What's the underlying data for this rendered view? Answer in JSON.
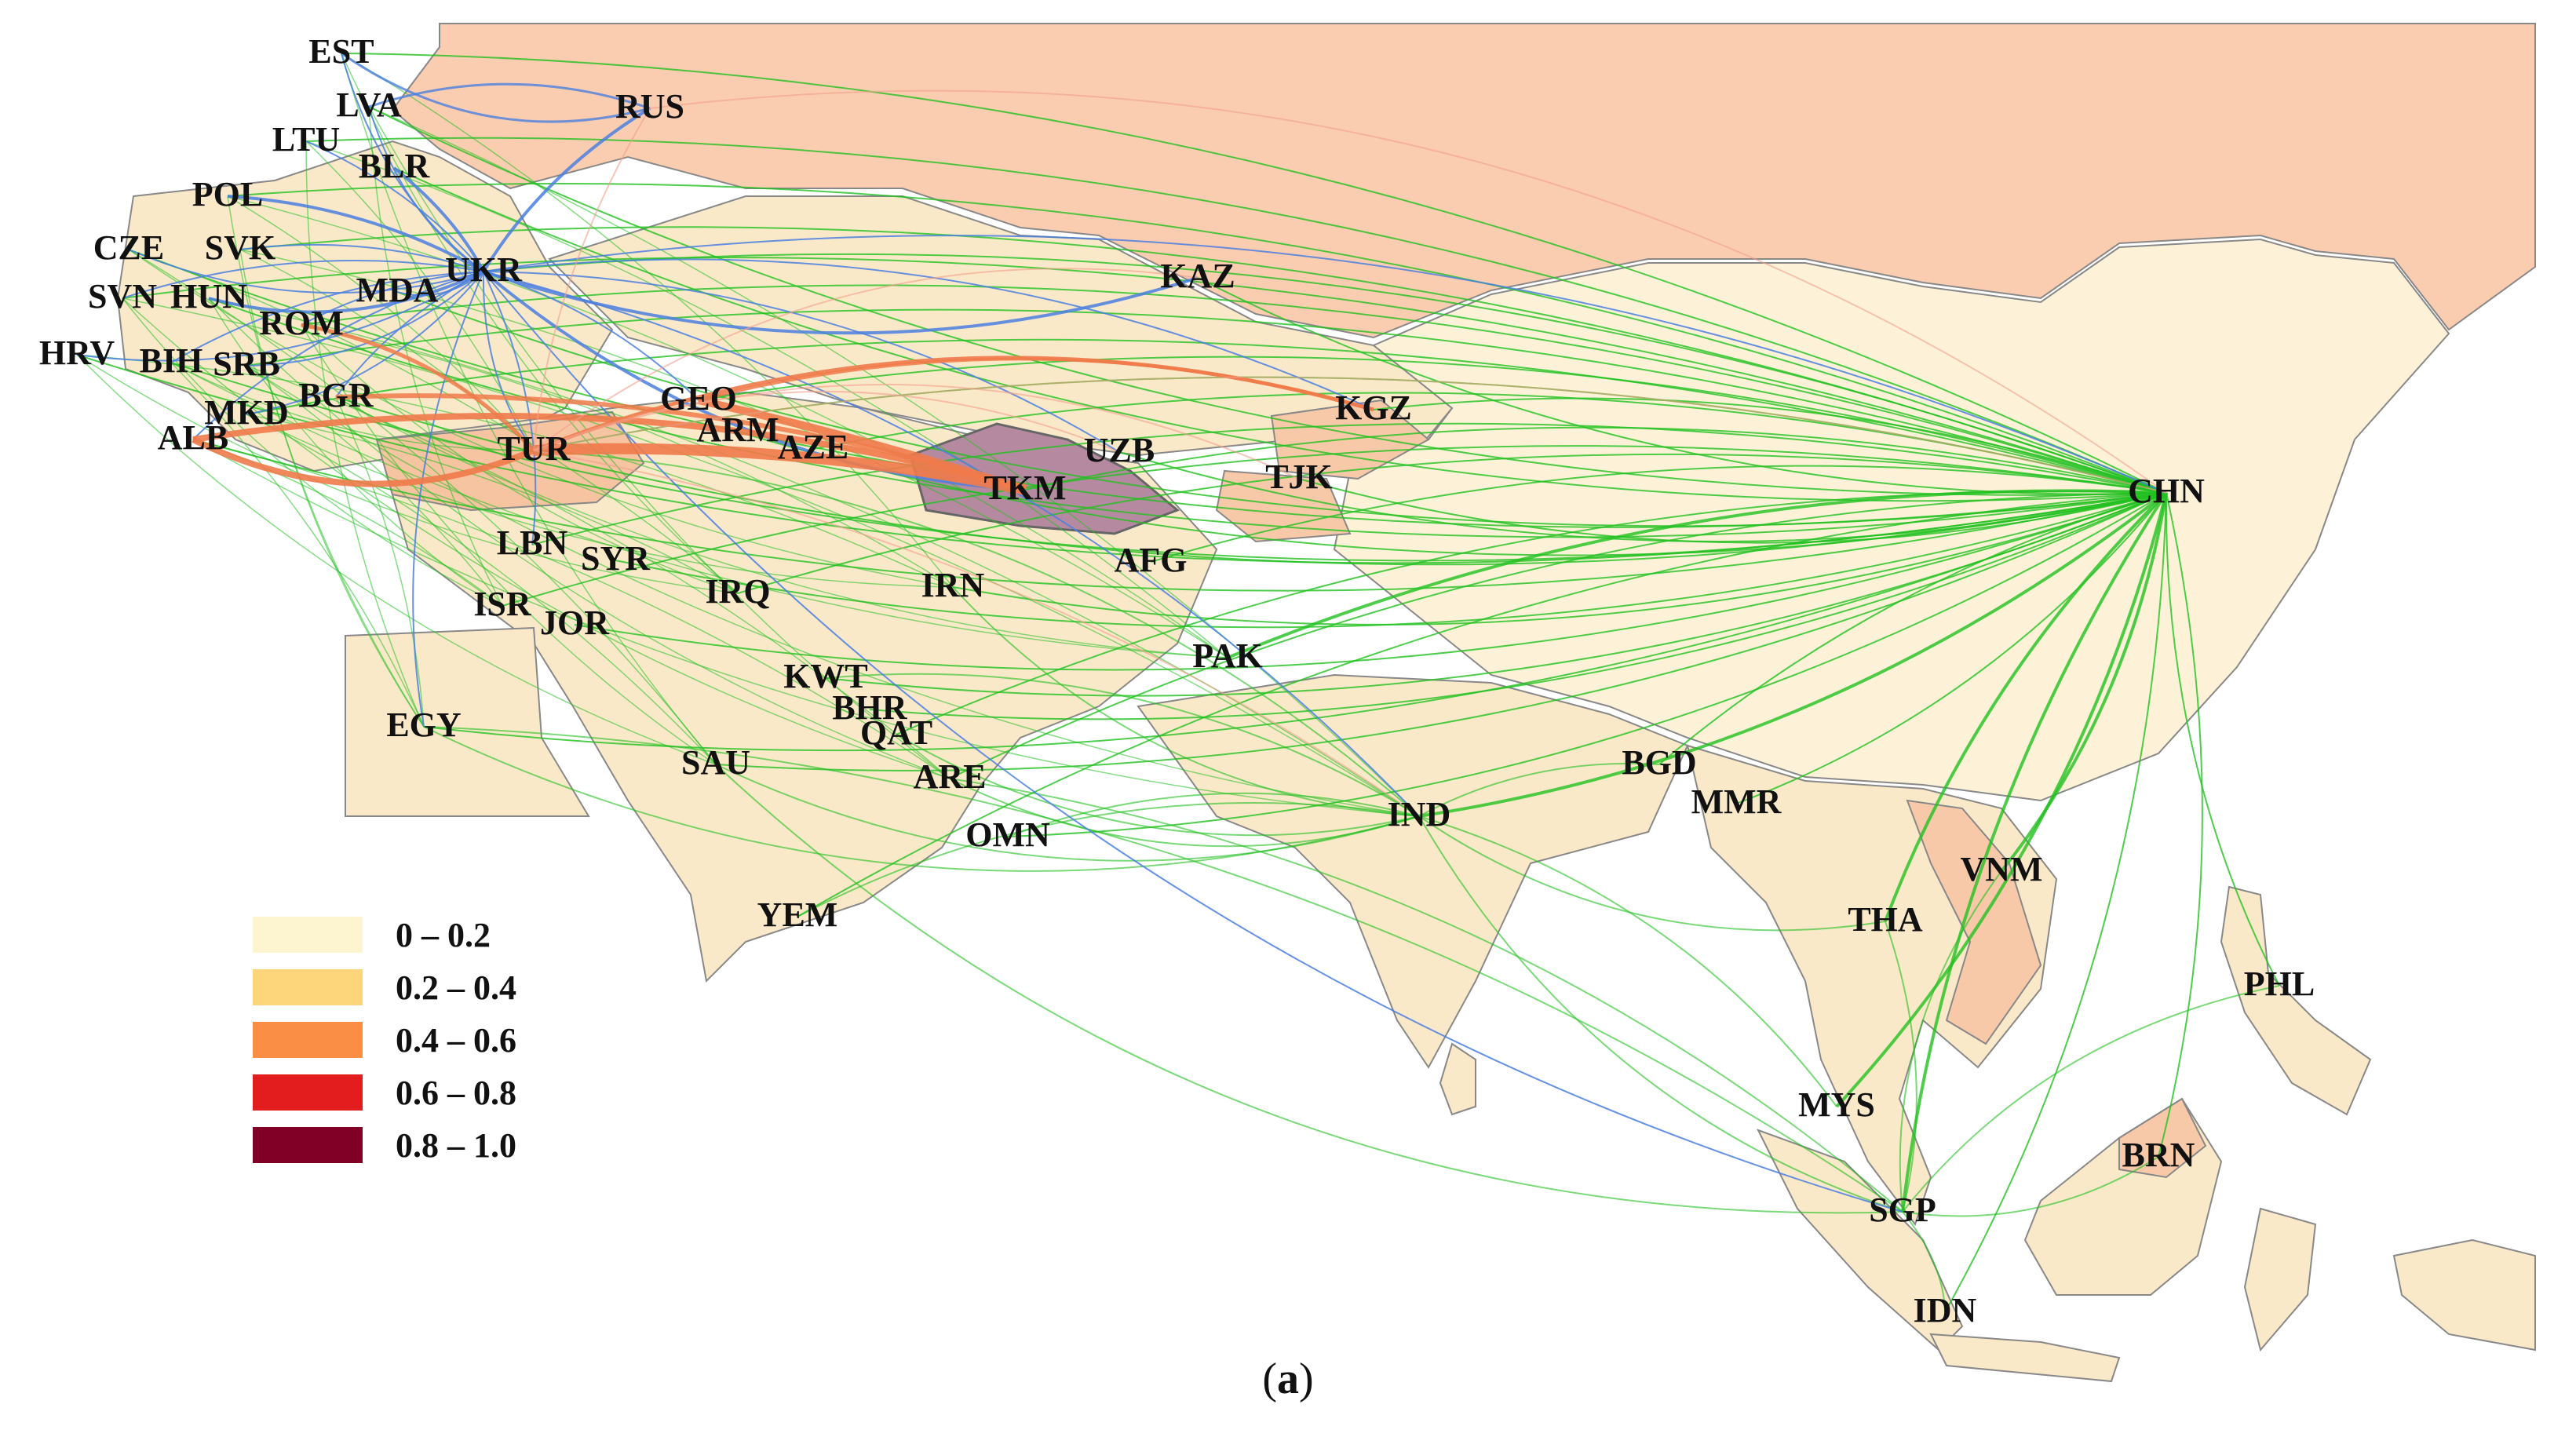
{
  "colors": {
    "band_0_0_2": "#fdf5cf",
    "band_0_2_0_4": "#fdd57a",
    "band_0_4_0_6": "#fb8e45",
    "band_0_6_0_8": "#e31d1d",
    "band_0_8_1_0": "#800026",
    "russia_fill": "#fbcdb0",
    "land_fill": "#fae9c9",
    "light_land": "#fdf2d8",
    "flow_green": "#22c020",
    "flow_blue": "#4a7fe0",
    "flow_orange": "#f07a4a",
    "flow_pink": "#f2a08c",
    "border": "#777777"
  },
  "legend": [
    {
      "label": "0    – 0.2",
      "color": "#fdf5cf"
    },
    {
      "label": "0.2 – 0.4",
      "color": "#fdd57a"
    },
    {
      "label": "0.4 – 0.6",
      "color": "#fb8e45"
    },
    {
      "label": "0.6 – 0.8",
      "color": "#e31d1d"
    },
    {
      "label": "0.8 – 1.0",
      "color": "#800026"
    }
  ],
  "countries": {
    "EST": "EST",
    "LVA": "LVA",
    "LTU": "LTU",
    "BLR": "BLR",
    "RUS": "RUS",
    "POL": "POL",
    "CZE": "CZE",
    "SVK": "SVK",
    "UKR": "UKR",
    "SVN": "SVN",
    "HUN": "HUN",
    "MDA": "MDA",
    "ROM": "ROM",
    "HRV": "HRV",
    "BIH": "BIH",
    "SRB": "SRB",
    "BGR": "BGR",
    "MKD": "MKD",
    "ALB": "ALB",
    "GEO": "GEO",
    "ARM": "ARM",
    "AZE": "AZE",
    "TUR": "TUR",
    "UZB": "UZB",
    "TKM": "TKM",
    "KAZ": "KAZ",
    "KGZ": "KGZ",
    "TJK": "TJK",
    "CHN": "CHN",
    "LBN": "LBN",
    "SYR": "SYR",
    "ISR": "ISR",
    "JOR": "JOR",
    "IRQ": "IRQ",
    "IRN": "IRN",
    "AFG": "AFG",
    "PAK": "PAK",
    "EGY": "EGY",
    "KWT": "KWT",
    "BHR": "BHR",
    "QAT": "QAT",
    "SAU": "SAU",
    "ARE": "ARE",
    "OMN": "OMN",
    "YEM": "YEM",
    "IND": "IND",
    "BGD": "BGD",
    "MMR": "MMR",
    "VNM": "VNM",
    "THA": "THA",
    "PHL": "PHL",
    "MYS": "MYS",
    "BRN": "BRN",
    "SGP": "SGP",
    "IDN": "IDN"
  },
  "caption": {
    "open": "(",
    "letter": "a",
    "close": ")"
  }
}
